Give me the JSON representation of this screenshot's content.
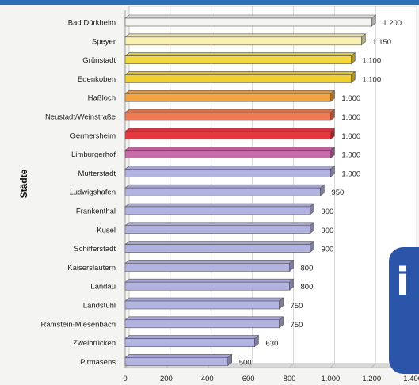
{
  "chart_data": {
    "type": "bar",
    "orientation": "horizontal",
    "ylabel": "Städte",
    "xlim": [
      0,
      1400
    ],
    "x_ticks": [
      "0",
      "200",
      "400",
      "600",
      "800",
      "1.000",
      "1.200",
      "1.400"
    ],
    "grid": true,
    "categories": [
      "Bad Dürkheim",
      "Speyer",
      "Grünstadt",
      "Edenkoben",
      "Haßloch",
      "Neustadt/Weinstraße",
      "Germersheim",
      "Limburgerhof",
      "Mutterstadt",
      "Ludwigshafen",
      "Frankenthal",
      "Kusel",
      "Schifferstadt",
      "Kaiserslautern",
      "Landau",
      "Landstuhl",
      "Ramstein-Miesenbach",
      "Zweibrücken",
      "Pirmasens"
    ],
    "values": [
      1200,
      1150,
      1100,
      1100,
      1000,
      1000,
      1000,
      1000,
      1000,
      950,
      900,
      900,
      900,
      800,
      800,
      750,
      750,
      630,
      500
    ],
    "value_labels": [
      "1.200",
      "1.150",
      "1.100",
      "1.100",
      "1.000",
      "1.000",
      "1.000",
      "1.000",
      "1.000",
      "950",
      "900",
      "900",
      "900",
      "800",
      "800",
      "750",
      "750",
      "630",
      "500"
    ],
    "bar_colors": [
      "#f4f4f0",
      "#f7f0b0",
      "#f2d83a",
      "#f0cf30",
      "#f2a540",
      "#ee7a52",
      "#e5383f",
      "#c86aa8",
      "#b3b3e2",
      "#b3b3e2",
      "#b3b3e2",
      "#b3b3e2",
      "#b3b3e2",
      "#b3b3e2",
      "#b3b3e2",
      "#b3b3e2",
      "#b3b3e2",
      "#b3b3e2",
      "#b3b3e2"
    ]
  },
  "badge": {
    "glyph": "i"
  }
}
